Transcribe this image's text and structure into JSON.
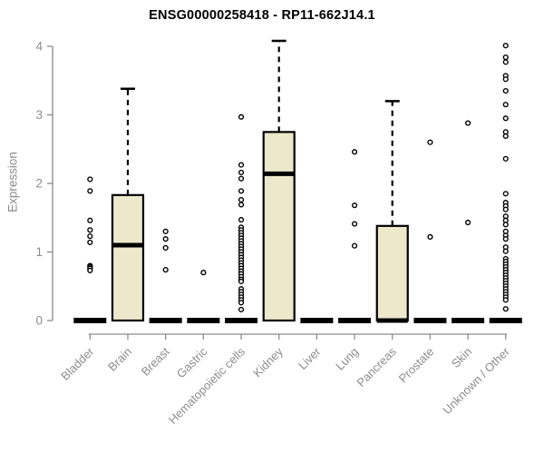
{
  "chart_data": {
    "type": "boxplot",
    "title": "ENSG00000258418 - RP11-662J14.1",
    "ylabel": "Expression",
    "xlabel": "",
    "ylim": [
      0,
      4
    ],
    "yticks": [
      0,
      1,
      2,
      3,
      4
    ],
    "grid": false,
    "legend": false,
    "categories": [
      "Bladder",
      "Brain",
      "Breast",
      "Gastric",
      "Hematopoietic cells",
      "Kidney",
      "Liver",
      "Lung",
      "Pancreas",
      "Prostate",
      "Skin",
      "Unknown / Other"
    ],
    "series": [
      {
        "label": "Bladder",
        "q1": 0,
        "median": 0,
        "q3": 0,
        "whisker_low": 0,
        "whisker_high": 0,
        "outliers": [
          2.06,
          1.89,
          1.46,
          1.32,
          1.23,
          1.14,
          0.8,
          0.78,
          0.76,
          0.73
        ]
      },
      {
        "label": "Brain",
        "q1": 0,
        "median": 1.1,
        "q3": 1.83,
        "whisker_low": 0,
        "whisker_high": 3.38,
        "outliers": []
      },
      {
        "label": "Breast",
        "q1": 0,
        "median": 0,
        "q3": 0,
        "whisker_low": 0,
        "whisker_high": 0,
        "outliers": [
          1.3,
          1.19,
          1.06,
          0.74
        ]
      },
      {
        "label": "Gastric",
        "q1": 0,
        "median": 0,
        "q3": 0,
        "whisker_low": 0,
        "whisker_high": 0,
        "outliers": [
          0.7
        ]
      },
      {
        "label": "Hematopoietic cells",
        "q1": 0,
        "median": 0,
        "q3": 0,
        "whisker_low": 0,
        "whisker_high": 0,
        "outliers": [
          2.97,
          2.27,
          2.16,
          2.07,
          1.89,
          1.76,
          1.69,
          1.47,
          1.36,
          1.32,
          1.28,
          1.24,
          1.2,
          1.16,
          1.12,
          1.08,
          1.04,
          1.0,
          0.96,
          0.92,
          0.88,
          0.84,
          0.8,
          0.76,
          0.72,
          0.68,
          0.64,
          0.6,
          0.57,
          0.46,
          0.42,
          0.38,
          0.34,
          0.3,
          0.26,
          0.16
        ]
      },
      {
        "label": "Kidney",
        "q1": 0,
        "median": 2.14,
        "q3": 2.75,
        "whisker_low": 0,
        "whisker_high": 4.08,
        "outliers": []
      },
      {
        "label": "Liver",
        "q1": 0,
        "median": 0,
        "q3": 0,
        "whisker_low": 0,
        "whisker_high": 0,
        "outliers": []
      },
      {
        "label": "Lung",
        "q1": 0,
        "median": 0,
        "q3": 0,
        "whisker_low": 0,
        "whisker_high": 0,
        "outliers": [
          2.46,
          1.68,
          1.41,
          1.09
        ]
      },
      {
        "label": "Pancreas",
        "q1": 0,
        "median": 0,
        "q3": 1.38,
        "whisker_low": 0,
        "whisker_high": 3.2,
        "outliers": []
      },
      {
        "label": "Prostate",
        "q1": 0,
        "median": 0,
        "q3": 0,
        "whisker_low": 0,
        "whisker_high": 0,
        "outliers": [
          2.6,
          1.22
        ]
      },
      {
        "label": "Skin",
        "q1": 0,
        "median": 0,
        "q3": 0,
        "whisker_low": 0,
        "whisker_high": 0,
        "outliers": [
          2.88,
          1.43
        ]
      },
      {
        "label": "Unknown / Other",
        "q1": 0,
        "median": 0,
        "q3": 0,
        "whisker_low": 0,
        "whisker_high": 0,
        "outliers": [
          4.01,
          3.84,
          3.77,
          3.57,
          3.52,
          3.35,
          3.15,
          2.95,
          2.75,
          2.69,
          2.36,
          1.85,
          1.72,
          1.67,
          1.62,
          1.52,
          1.46,
          1.4,
          1.3,
          1.24,
          1.19,
          1.07,
          1.01,
          0.9,
          0.86,
          0.82,
          0.78,
          0.74,
          0.7,
          0.66,
          0.62,
          0.58,
          0.54,
          0.5,
          0.46,
          0.42,
          0.38,
          0.34,
          0.3,
          0.17
        ]
      }
    ],
    "colors": {
      "background": "#FFFFFF",
      "box_fill": "#EDE7CC",
      "box_border": "#000000",
      "median": "#000000",
      "whisker": "#000000",
      "outlier": "#000000",
      "axis": "#8C8C8C",
      "tick_label": "#8C8C8C",
      "title": "#000000"
    }
  }
}
